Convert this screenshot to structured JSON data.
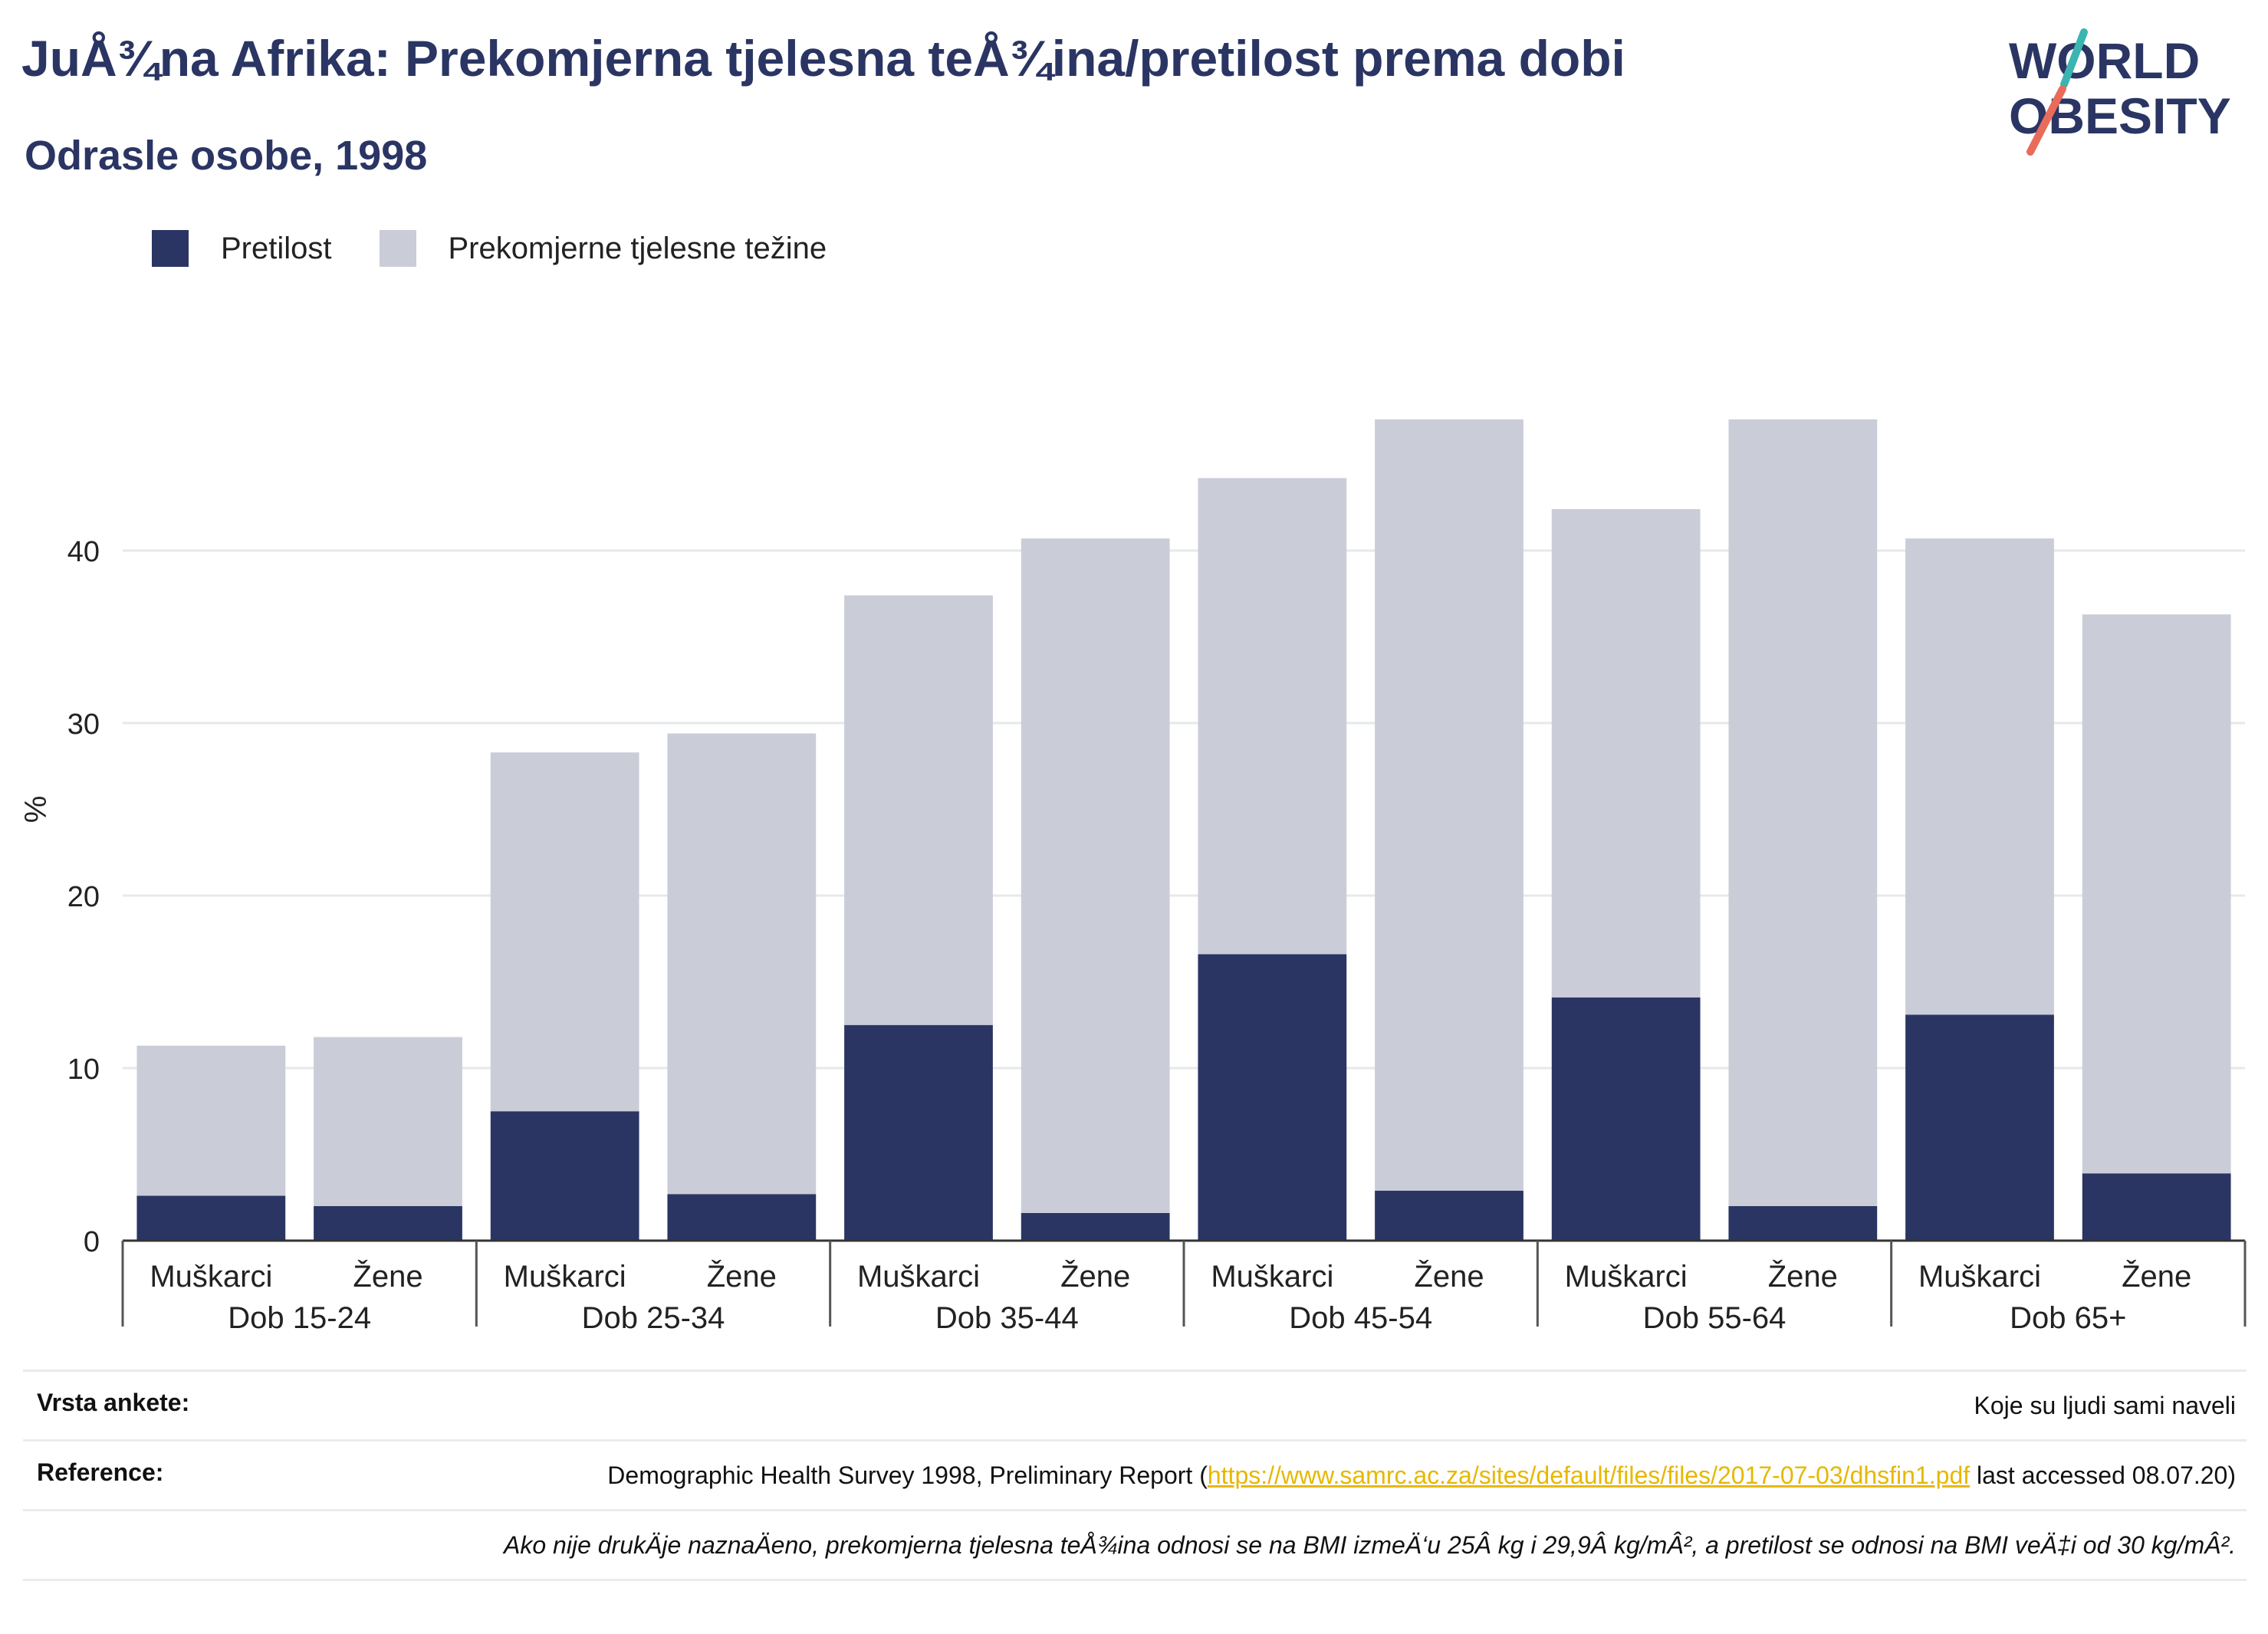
{
  "header": {
    "title": "JuÅ¾na Afrika: Prekomjerna tjelesna teÅ¾ina/pretilost prema dobi",
    "subtitle": "Odrasle osobe, 1998"
  },
  "logo": {
    "line1": "WORLD",
    "line2": "OBESITY"
  },
  "colors": {
    "obesity": "#2a3563",
    "overweight": "#cacdd8",
    "title": "#2a3563",
    "link": "#e6b800"
  },
  "chart_data": {
    "type": "bar",
    "stacked": true,
    "ylabel": "%",
    "ylim": [
      0,
      50
    ],
    "yticks": [
      0,
      10,
      20,
      30,
      40
    ],
    "grid": true,
    "legend_position": "top-left",
    "groups": [
      "Dob 15-24",
      "Dob 25-34",
      "Dob 35-44",
      "Dob 45-54",
      "Dob 55-64",
      "Dob 65+"
    ],
    "subcategories": [
      "Muškarci",
      "Žene"
    ],
    "series": [
      {
        "name": "Pretilost",
        "values": [
          2.6,
          2.0,
          7.5,
          2.7,
          12.5,
          1.6,
          16.6,
          2.9,
          14.1,
          2.0,
          13.1,
          3.9
        ]
      },
      {
        "name": "Prekomjerne tjelesne težine",
        "values": [
          8.7,
          9.8,
          20.8,
          26.7,
          24.9,
          39.1,
          27.6,
          44.7,
          28.3,
          45.6,
          27.6,
          32.4
        ]
      }
    ]
  },
  "footer": {
    "survey_label": "Vrsta ankete:",
    "survey_value": "Koje su ljudi sami naveli",
    "reference_label": "Reference:",
    "reference_prefix": "Demographic Health Survey 1998, Preliminary Report (",
    "reference_link": "https://www.samrc.ac.za/sites/default/files/files/2017-07-03/dhsfin1.pdf",
    "reference_suffix": " last accessed 08.07.20)",
    "note": "Ako nije drukÄje naznaÄeno, prekomjerna tjelesna teÅ¾ina odnosi se na BMI izmeÄ‘u 25Â kg i 29,9Â kg/mÂ², a pretilost se odnosi na BMI veÄ‡i od 30 kg/mÂ²."
  }
}
